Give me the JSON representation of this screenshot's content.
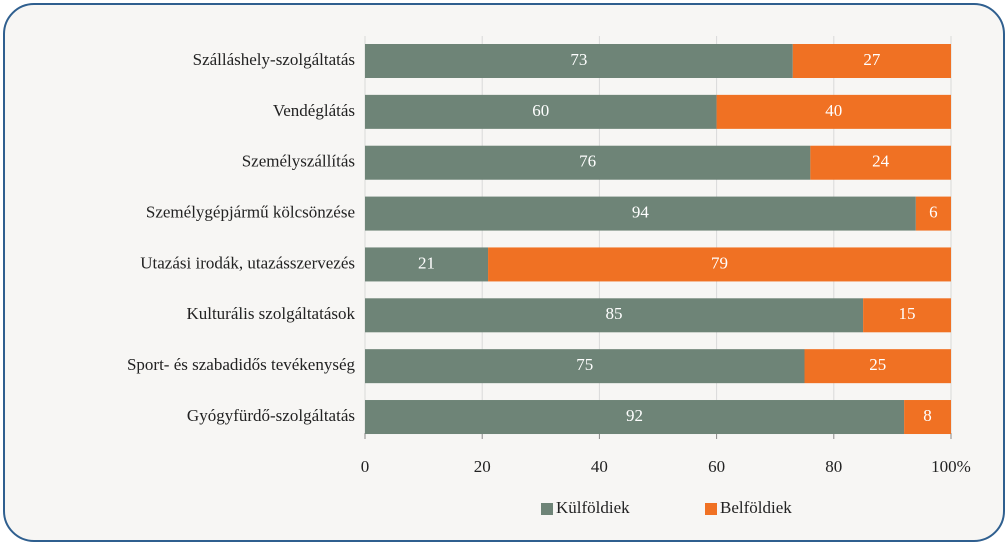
{
  "chart_data": {
    "type": "bar",
    "orientation": "horizontal",
    "stacked": true,
    "categories": [
      "Szálláshely-szolgáltatás",
      "Vendéglátás",
      "Személyszállítás",
      "Személygépjármű kölcsönzése",
      "Utazási irodák, utazásszervezés",
      "Kulturális szolgáltatások",
      "Sport- és szabadidős tevékenység",
      "Gyógyfürdő-szolgáltatás"
    ],
    "series": [
      {
        "name": "Külföldiek",
        "color": "#6e8477",
        "values": [
          73,
          60,
          76,
          94,
          21,
          85,
          75,
          92
        ]
      },
      {
        "name": "Belföldiek",
        "color": "#f07123",
        "values": [
          27,
          40,
          24,
          6,
          79,
          15,
          25,
          8
        ]
      }
    ],
    "xlim": [
      0,
      100
    ],
    "xticks": [
      0,
      20,
      40,
      60,
      80,
      {
        "value": 100,
        "label": "100%"
      }
    ],
    "grid": true,
    "legend": "bottom"
  }
}
